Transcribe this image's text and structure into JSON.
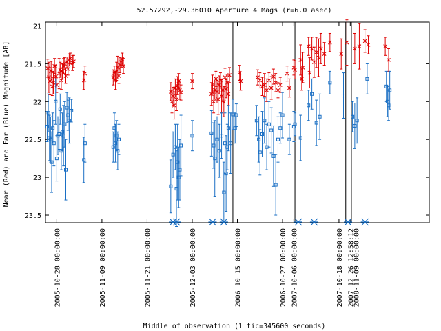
{
  "chart_data": {
    "type": "scatter",
    "title": "52.57292,-29.36010   Aperture 4 Mags (r=6.0 asec)",
    "xlabel": "Middle of observation (1 tic=345600 seconds)",
    "ylabel": "Near (Red) and Far (Blue) Magnitude [AB]",
    "ylim": [
      23.6,
      20.95
    ],
    "xlim": [
      0,
      34
    ],
    "y_ticks": [
      "21",
      "21.5",
      "22",
      "22.5",
      "23",
      "23.5"
    ],
    "x_tick_labels": [
      {
        "x": 1,
        "label": "2005-10-28 00:00:00"
      },
      {
        "x": 5,
        "label": "2005-11-09 00:00:00"
      },
      {
        "x": 9,
        "label": "2005-11-21 00:00:00"
      },
      {
        "x": 13,
        "label": "2005-12-03 00:00:00"
      },
      {
        "x": 17,
        "label": "2006-10-15 00:00:00"
      },
      {
        "x": 21,
        "label": "2006-10-27 00:00:00"
      },
      {
        "x": 22,
        "label": "2007-10-06 00:00:00"
      },
      {
        "x": 26,
        "label": "2007-10-18 00:00:00"
      },
      {
        "x": 27,
        "label": "2007-12-26 12:58:12"
      },
      {
        "x": 27.5,
        "label": "2008-11-09 00:00:00"
      }
    ],
    "vertical_lines_x": [
      16.6,
      22.1,
      26.6,
      27.1
    ],
    "upper_limits_x": [
      11.3,
      11.6,
      14.8,
      15.8,
      22.4,
      23.8,
      26.8,
      28.3
    ],
    "series": [
      {
        "color": "#dd0000",
        "marker": "star",
        "points": [
          [
            0.2,
            21.56,
            0.12
          ],
          [
            0.3,
            21.68,
            0.2
          ],
          [
            0.4,
            21.73,
            0.18
          ],
          [
            0.5,
            21.6,
            0.13
          ],
          [
            0.6,
            21.8,
            0.12
          ],
          [
            0.7,
            21.75,
            0.15
          ],
          [
            0.8,
            21.53,
            0.1
          ],
          [
            0.9,
            21.67,
            0.15
          ],
          [
            1.0,
            21.78,
            0.1
          ],
          [
            1.2,
            21.63,
            0.2
          ],
          [
            1.3,
            21.58,
            0.1
          ],
          [
            1.4,
            21.72,
            0.12
          ],
          [
            1.5,
            21.6,
            0.1
          ],
          [
            1.6,
            21.53,
            0.1
          ],
          [
            1.7,
            21.5,
            0.08
          ],
          [
            1.8,
            21.66,
            0.1
          ],
          [
            1.9,
            21.48,
            0.07
          ],
          [
            2.0,
            21.57,
            0.08
          ],
          [
            2.1,
            21.45,
            0.08
          ],
          [
            2.2,
            21.43,
            0.07
          ],
          [
            2.4,
            21.49,
            0.1
          ],
          [
            2.5,
            21.47,
            0.08
          ],
          [
            3.4,
            21.72,
            0.12
          ],
          [
            3.5,
            21.63,
            0.1
          ],
          [
            6.0,
            21.68,
            0.1
          ],
          [
            6.1,
            21.63,
            0.1
          ],
          [
            6.2,
            21.72,
            0.12
          ],
          [
            6.3,
            21.6,
            0.12
          ],
          [
            6.4,
            21.55,
            0.15
          ],
          [
            6.5,
            21.66,
            0.1
          ],
          [
            6.6,
            21.52,
            0.1
          ],
          [
            6.7,
            21.48,
            0.07
          ],
          [
            6.8,
            21.44,
            0.08
          ],
          [
            6.9,
            21.53,
            0.1
          ],
          [
            11.1,
            21.87,
            0.12
          ],
          [
            11.2,
            22.0,
            0.15
          ],
          [
            11.3,
            21.93,
            0.12
          ],
          [
            11.4,
            22.05,
            0.18
          ],
          [
            11.5,
            21.82,
            0.12
          ],
          [
            11.6,
            21.97,
            0.15
          ],
          [
            11.7,
            21.79,
            0.12
          ],
          [
            11.8,
            21.73,
            0.1
          ],
          [
            11.9,
            21.85,
            0.12
          ],
          [
            12.0,
            21.88,
            0.1
          ],
          [
            13.0,
            21.73,
            0.1
          ],
          [
            14.7,
            21.9,
            0.15
          ],
          [
            14.8,
            21.77,
            0.12
          ],
          [
            14.9,
            22.0,
            0.15
          ],
          [
            15.0,
            21.85,
            0.12
          ],
          [
            15.1,
            21.7,
            0.1
          ],
          [
            15.2,
            21.87,
            0.15
          ],
          [
            15.3,
            21.97,
            0.2
          ],
          [
            15.4,
            21.78,
            0.12
          ],
          [
            15.5,
            21.72,
            0.1
          ],
          [
            15.6,
            21.93,
            0.22
          ],
          [
            15.7,
            21.85,
            0.15
          ],
          [
            15.8,
            22.0,
            0.2
          ],
          [
            15.9,
            21.68,
            0.12
          ],
          [
            16.0,
            21.83,
            0.12
          ],
          [
            16.1,
            21.75,
            0.1
          ],
          [
            16.2,
            21.9,
            0.15
          ],
          [
            16.3,
            21.65,
            0.1
          ],
          [
            17.2,
            21.62,
            0.1
          ],
          [
            17.3,
            21.73,
            0.12
          ],
          [
            18.8,
            21.68,
            0.1
          ],
          [
            19.0,
            21.72,
            0.1
          ],
          [
            19.2,
            21.8,
            0.12
          ],
          [
            19.4,
            21.78,
            0.15
          ],
          [
            19.6,
            21.85,
            0.15
          ],
          [
            19.8,
            21.72,
            0.1
          ],
          [
            20.0,
            21.82,
            0.15
          ],
          [
            20.2,
            21.67,
            0.1
          ],
          [
            20.4,
            21.75,
            0.12
          ],
          [
            20.6,
            21.85,
            0.1
          ],
          [
            20.8,
            21.78,
            0.1
          ],
          [
            21.4,
            21.63,
            0.1
          ],
          [
            21.6,
            21.82,
            0.12
          ],
          [
            22.0,
            21.55,
            0.1
          ],
          [
            22.1,
            21.58,
            0.12
          ],
          [
            22.6,
            21.45,
            0.2
          ],
          [
            22.7,
            21.7,
            0.15
          ],
          [
            22.8,
            21.55,
            0.2
          ],
          [
            23.3,
            21.27,
            0.12
          ],
          [
            23.4,
            21.62,
            0.2
          ],
          [
            23.6,
            21.3,
            0.15
          ],
          [
            23.8,
            21.48,
            0.2
          ],
          [
            24.0,
            21.35,
            0.2
          ],
          [
            24.2,
            21.42,
            0.25
          ],
          [
            24.4,
            21.3,
            0.2
          ],
          [
            24.7,
            21.37,
            0.15
          ],
          [
            25.2,
            21.22,
            0.12
          ],
          [
            26.2,
            21.37,
            0.2
          ],
          [
            26.7,
            21.22,
            0.3
          ],
          [
            27.4,
            21.3,
            0.2
          ],
          [
            27.8,
            21.27,
            0.3
          ],
          [
            28.3,
            21.2,
            0.15
          ],
          [
            28.6,
            21.25,
            0.12
          ],
          [
            30.1,
            21.27,
            0.12
          ],
          [
            30.4,
            21.45,
            0.15
          ]
        ]
      },
      {
        "color": "#1a6fc4",
        "marker": "square",
        "points": [
          [
            0.15,
            22.33,
            0.2
          ],
          [
            0.25,
            22.15,
            0.25
          ],
          [
            0.35,
            22.48,
            0.3
          ],
          [
            0.45,
            22.5,
            0.3
          ],
          [
            0.55,
            22.8,
            0.4
          ],
          [
            0.65,
            22.35,
            0.2
          ],
          [
            0.75,
            22.55,
            0.3
          ],
          [
            0.9,
            22.0,
            0.3
          ],
          [
            1.0,
            22.75,
            0.3
          ],
          [
            1.1,
            22.45,
            0.25
          ],
          [
            1.2,
            22.43,
            0.2
          ],
          [
            1.3,
            22.1,
            0.2
          ],
          [
            1.4,
            22.65,
            0.25
          ],
          [
            1.5,
            22.4,
            0.25
          ],
          [
            1.6,
            22.45,
            0.4
          ],
          [
            1.7,
            22.3,
            0.3
          ],
          [
            1.8,
            22.9,
            0.4
          ],
          [
            1.9,
            22.08,
            0.2
          ],
          [
            2.0,
            22.18,
            0.2
          ],
          [
            2.1,
            22.25,
            0.3
          ],
          [
            2.3,
            22.12,
            0.15
          ],
          [
            3.4,
            22.77,
            0.3
          ],
          [
            3.5,
            22.55,
            0.25
          ],
          [
            6.0,
            22.6,
            0.2
          ],
          [
            6.1,
            22.35,
            0.2
          ],
          [
            6.2,
            22.55,
            0.25
          ],
          [
            6.3,
            22.45,
            0.2
          ],
          [
            6.4,
            22.65,
            0.25
          ],
          [
            6.5,
            22.5,
            0.2
          ],
          [
            11.1,
            23.12,
            0.35
          ],
          [
            11.3,
            22.7,
            0.3
          ],
          [
            11.5,
            22.6,
            0.3
          ],
          [
            11.6,
            23.15,
            0.5
          ],
          [
            11.7,
            22.8,
            0.5
          ],
          [
            11.8,
            23.0,
            0.4
          ],
          [
            11.9,
            22.9,
            0.4
          ],
          [
            12.0,
            22.58,
            0.4
          ],
          [
            13.0,
            22.45,
            0.2
          ],
          [
            14.7,
            22.42,
            0.3
          ],
          [
            14.9,
            22.58,
            0.3
          ],
          [
            15.0,
            22.75,
            0.5
          ],
          [
            15.2,
            22.5,
            0.3
          ],
          [
            15.4,
            22.65,
            0.35
          ],
          [
            15.6,
            22.45,
            0.3
          ],
          [
            15.8,
            23.2,
            0.4
          ],
          [
            15.9,
            22.55,
            0.4
          ],
          [
            16.0,
            22.95,
            0.5
          ],
          [
            16.1,
            22.6,
            0.3
          ],
          [
            16.2,
            22.35,
            0.3
          ],
          [
            16.4,
            22.55,
            0.4
          ],
          [
            16.6,
            22.17,
            0.2
          ],
          [
            16.8,
            22.35,
            0.2
          ],
          [
            16.9,
            22.18,
            0.15
          ],
          [
            18.7,
            22.25,
            0.2
          ],
          [
            18.9,
            22.5,
            0.3
          ],
          [
            19.0,
            22.67,
            0.3
          ],
          [
            19.2,
            22.43,
            0.3
          ],
          [
            19.4,
            22.25,
            0.3
          ],
          [
            19.6,
            22.6,
            0.3
          ],
          [
            19.8,
            22.3,
            0.3
          ],
          [
            20.0,
            22.38,
            0.3
          ],
          [
            20.2,
            22.72,
            0.4
          ],
          [
            20.4,
            23.1,
            0.4
          ],
          [
            20.6,
            22.5,
            0.3
          ],
          [
            20.8,
            22.35,
            0.2
          ],
          [
            21.0,
            22.18,
            0.3
          ],
          [
            21.6,
            22.5,
            0.2
          ],
          [
            22.0,
            22.33,
            0.2
          ],
          [
            22.1,
            22.3,
            0.15
          ],
          [
            22.6,
            22.48,
            0.3
          ],
          [
            23.3,
            22.05,
            0.2
          ],
          [
            23.6,
            21.9,
            0.2
          ],
          [
            24.0,
            22.28,
            0.3
          ],
          [
            24.3,
            22.2,
            0.3
          ],
          [
            25.2,
            21.75,
            0.15
          ],
          [
            26.4,
            21.92,
            0.3
          ],
          [
            27.2,
            22.2,
            0.2
          ],
          [
            27.4,
            22.32,
            0.3
          ],
          [
            27.6,
            22.25,
            0.3
          ],
          [
            28.5,
            21.7,
            0.2
          ],
          [
            30.2,
            21.8,
            0.2
          ],
          [
            30.3,
            22.0,
            0.2
          ],
          [
            30.4,
            22.05,
            0.2
          ],
          [
            30.5,
            21.85,
            0.25
          ]
        ]
      }
    ]
  }
}
